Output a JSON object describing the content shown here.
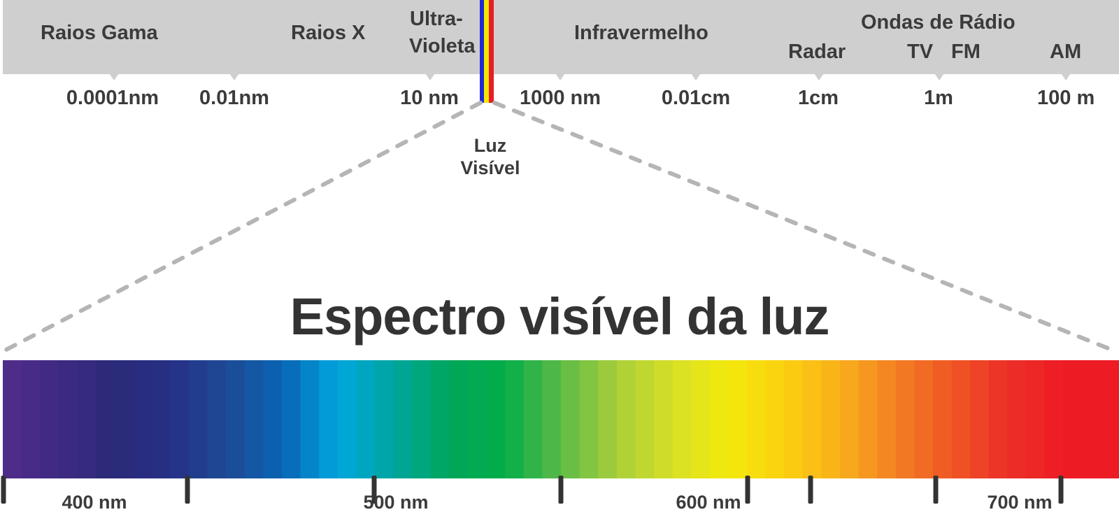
{
  "em_spectrum": {
    "regions": {
      "gamma": "Raios Gama",
      "xray": "Raios X",
      "uv_line1": "Ultra-",
      "uv_line2": "Violeta",
      "infrared": "Infravermelho",
      "radio": "Ondas de Rádio",
      "radar": "Radar",
      "tv": "TV",
      "fm": "FM",
      "am": "AM"
    },
    "wavelengths": [
      "0.0001nm",
      "0.01nm",
      "10 nm",
      "1000 nm",
      "0.01cm",
      "1cm",
      "1m",
      "100 m"
    ],
    "visible_label_line1": "Luz",
    "visible_label_line2": "Visível",
    "visible_colors": [
      "#1e2bd6",
      "#f5e800",
      "#e81e25"
    ]
  },
  "visible_spectrum": {
    "title": "Espectro visível da luz",
    "axis_labels": [
      "400 nm",
      "500 nm",
      "600 nm",
      "700 nm"
    ],
    "gradient_colors": [
      "#522c8c",
      "#3e2a82",
      "#2b2a78",
      "#263085",
      "#1e4a94",
      "#0a63b4",
      "#00a6de",
      "#00a5a0",
      "#00a65a",
      "#04ad48",
      "#5cba47",
      "#a8cf3a",
      "#d7df26",
      "#f3ea0c",
      "#fbd010",
      "#f8b01a",
      "#f37f24",
      "#ef5624",
      "#ec2f27",
      "#ed1c24",
      "#ed1c24"
    ]
  }
}
